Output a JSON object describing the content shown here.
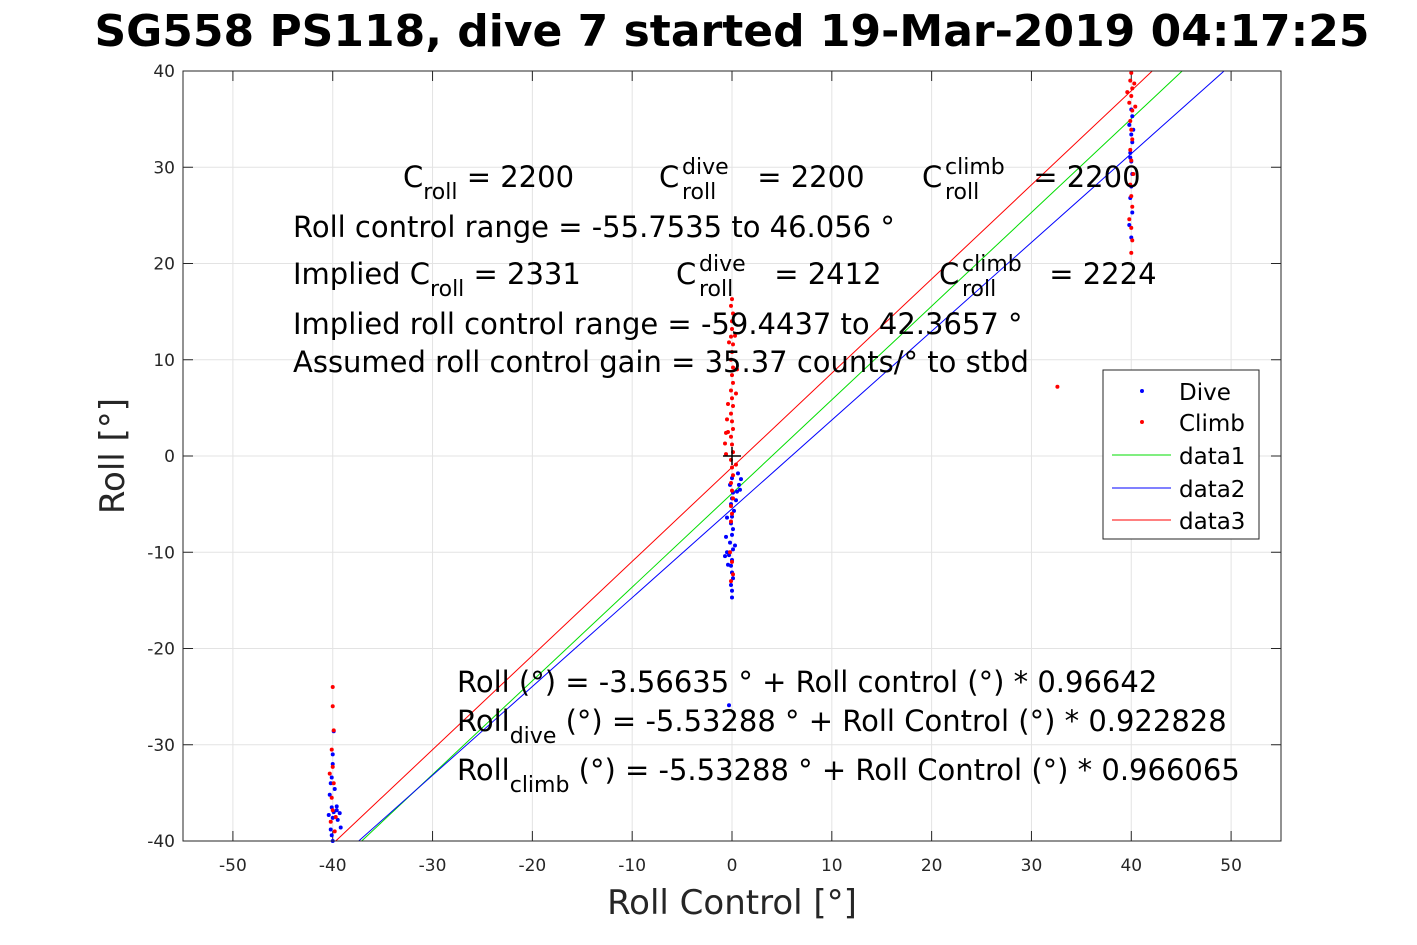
{
  "chart_data": {
    "type": "scatter",
    "title": "SG558 PS118, dive 7 started 19-Mar-2019 04:17:25",
    "xlabel": "Roll Control [°]",
    "ylabel": "Roll [°]",
    "xlim": [
      -55,
      55
    ],
    "ylim": [
      -40,
      40
    ],
    "xticks": [
      -50,
      -40,
      -30,
      -20,
      -10,
      0,
      10,
      20,
      30,
      40,
      50
    ],
    "yticks": [
      -40,
      -30,
      -20,
      -10,
      0,
      10,
      20,
      30,
      40
    ],
    "grid": true,
    "legend_position": "right",
    "colors": {
      "dive": "#0000ff",
      "climb": "#ff0000",
      "data1": "#00dd00",
      "data2": "#0000ff",
      "data3": "#ff0000"
    },
    "series": [
      {
        "name": "Dive",
        "marker": "dot",
        "points": [
          [
            -40,
            -40
          ],
          [
            -40.1,
            -39.4
          ],
          [
            -40.2,
            -38.8
          ],
          [
            -40,
            -37.6
          ],
          [
            -39.9,
            -37.0
          ],
          [
            -40.1,
            -36.5
          ],
          [
            -40.3,
            -35.2
          ],
          [
            -39.8,
            -34.6
          ],
          [
            -40.2,
            -34.0
          ],
          [
            -40.1,
            -33.4
          ],
          [
            -40,
            -32.0
          ],
          [
            -40,
            -31.0
          ],
          [
            -39.9,
            -28.6
          ],
          [
            -40.4,
            -37.3
          ],
          [
            -39.6,
            -36.4
          ],
          [
            -39.2,
            -38.6
          ],
          [
            -39.5,
            -37.8
          ],
          [
            -39.6,
            -36.8
          ],
          [
            -39.3,
            -37.1
          ],
          [
            0,
            -14.7
          ],
          [
            0,
            -14.0
          ],
          [
            -0.1,
            -13.4
          ],
          [
            0.1,
            -12.7
          ],
          [
            0,
            -12.1
          ],
          [
            -0.1,
            -11.4
          ],
          [
            0,
            -10.8
          ],
          [
            -0.3,
            -10.3
          ],
          [
            -0.7,
            -10.4
          ],
          [
            -0.5,
            -10.0
          ],
          [
            0.1,
            -9.7
          ],
          [
            -0.2,
            -9.0
          ],
          [
            0,
            -8.2
          ],
          [
            0.1,
            -7.6
          ],
          [
            -0.1,
            -7.0
          ],
          [
            0,
            -6.3
          ],
          [
            0.2,
            -5.7
          ],
          [
            -0.1,
            -5.0
          ],
          [
            0,
            -4.4
          ],
          [
            0.1,
            -3.8
          ],
          [
            -0.2,
            -3.0
          ],
          [
            0,
            -2.3
          ],
          [
            0.4,
            -4.6
          ],
          [
            0.5,
            -3.7
          ],
          [
            0.7,
            -3.0
          ],
          [
            0.9,
            -2.4
          ],
          [
            0.6,
            -1.8
          ],
          [
            0.8,
            -3.5
          ],
          [
            -0.5,
            -6.4
          ],
          [
            -0.6,
            -8.4
          ],
          [
            0.3,
            -9.3
          ],
          [
            -0.4,
            -11.3
          ],
          [
            -0.3,
            -25.9
          ],
          [
            40,
            22.7
          ],
          [
            39.8,
            24.0
          ],
          [
            40.1,
            25.3
          ],
          [
            39.9,
            26.8
          ],
          [
            40,
            28.0
          ],
          [
            40.1,
            29.3
          ],
          [
            40,
            30.6
          ],
          [
            39.9,
            31.5
          ],
          [
            40.1,
            32.6
          ],
          [
            40,
            33.4
          ],
          [
            39.8,
            34.4
          ],
          [
            40.1,
            35.3
          ],
          [
            39.9,
            31.0
          ],
          [
            40.2,
            33.9
          ],
          [
            40,
            36.0
          ]
        ]
      },
      {
        "name": "Climb",
        "marker": "dot",
        "points": [
          [
            -40,
            -24.0
          ],
          [
            -40,
            -26.0
          ],
          [
            -39.9,
            -28.5
          ],
          [
            -40.1,
            -30.5
          ],
          [
            -40,
            -32.3
          ],
          [
            -39.9,
            -34.0
          ],
          [
            -40.1,
            -35.5
          ],
          [
            -40,
            -36.8
          ],
          [
            -40.2,
            -38.0
          ],
          [
            -39.8,
            -39.0
          ],
          [
            -39.7,
            -37.5
          ],
          [
            -40.3,
            -33.0
          ],
          [
            0,
            16.3
          ],
          [
            -0.1,
            15.6
          ],
          [
            0.1,
            14.8
          ],
          [
            0,
            14.0
          ],
          [
            0,
            13.2
          ],
          [
            -0.1,
            12.4
          ],
          [
            0.1,
            11.6
          ],
          [
            0,
            10.8
          ],
          [
            -0.1,
            10.0
          ],
          [
            0.1,
            9.2
          ],
          [
            0,
            8.4
          ],
          [
            0.1,
            7.6
          ],
          [
            -0.1,
            6.8
          ],
          [
            0,
            6.0
          ],
          [
            0.1,
            5.2
          ],
          [
            -0.1,
            4.4
          ],
          [
            0,
            3.6
          ],
          [
            0.1,
            2.8
          ],
          [
            -0.1,
            2.0
          ],
          [
            0,
            1.2
          ],
          [
            0.1,
            0.4
          ],
          [
            -0.1,
            -0.4
          ],
          [
            0,
            -1.2
          ],
          [
            0.1,
            -2.0
          ],
          [
            -0.1,
            -2.8
          ],
          [
            0,
            -3.6
          ],
          [
            0.1,
            -4.4
          ],
          [
            -0.1,
            -5.2
          ],
          [
            0,
            -6.0
          ],
          [
            -0.1,
            -6.8
          ],
          [
            -0.2,
            -10.0
          ],
          [
            0,
            -11.0
          ],
          [
            0.1,
            -12.3
          ],
          [
            -0.1,
            -13.0
          ],
          [
            -0.6,
            2.4
          ],
          [
            -0.7,
            1.3
          ],
          [
            -0.5,
            3.8
          ],
          [
            -0.6,
            0.2
          ],
          [
            0.4,
            6.5
          ],
          [
            0.5,
            9.0
          ],
          [
            -0.3,
            11.8
          ],
          [
            0.3,
            12.5
          ],
          [
            -0.4,
            5.4
          ],
          [
            0.4,
            -0.9
          ],
          [
            -0.4,
            2.5
          ],
          [
            32.6,
            7.2
          ],
          [
            40,
            39.8
          ],
          [
            39.9,
            39.0
          ],
          [
            40.1,
            38.2
          ],
          [
            40,
            37.4
          ],
          [
            39.8,
            36.7
          ],
          [
            40.1,
            35.9
          ],
          [
            39.9,
            34.8
          ],
          [
            40,
            33.9
          ],
          [
            40.1,
            32.9
          ],
          [
            39.9,
            31.8
          ],
          [
            40,
            30.7
          ],
          [
            40.2,
            29.3
          ],
          [
            39.9,
            28.2
          ],
          [
            40,
            27.0
          ],
          [
            40.1,
            25.9
          ],
          [
            39.8,
            24.6
          ],
          [
            40,
            23.7
          ],
          [
            40.1,
            22.4
          ],
          [
            40,
            21.1
          ],
          [
            40.3,
            38.7
          ],
          [
            39.6,
            37.8
          ],
          [
            40.4,
            36.3
          ]
        ]
      },
      {
        "name": "data1",
        "style": "line",
        "x": [
          -37.1,
          45.1
        ],
        "y": [
          -40,
          40
        ]
      },
      {
        "name": "data2",
        "style": "line",
        "x": [
          -37.4,
          49.3
        ],
        "y": [
          -40,
          40
        ]
      },
      {
        "name": "data3",
        "style": "line",
        "x": [
          -39.7,
          42.1
        ],
        "y": [
          -40,
          40
        ]
      }
    ],
    "origin_marker": [
      0,
      0
    ],
    "annotations": {
      "line1": {
        "c": "C",
        "c_sub": "roll",
        "v1": " = 2200",
        "c2": "C",
        "c2_sup": "dive",
        "c2_sub": "roll",
        "v2": " = 2200",
        "c3": "C",
        "c3_sup": "climb",
        "c3_sub": "roll",
        "v3": " = 2200"
      },
      "line2": "Roll control range = -55.7535 to 46.056 °",
      "line3": {
        "pre": "Implied C",
        "pre_sub": "roll",
        "v1": " = 2331",
        "c2": "C",
        "c2_sup": "dive",
        "c2_sub": "roll",
        "v2": " = 2412",
        "c3": "C",
        "c3_sup": "climb",
        "c3_sub": "roll",
        "v3": " = 2224"
      },
      "line4": "Implied roll control range = -59.4437 to 42.3657 °",
      "line5": "Assumed roll control gain = 35.37 counts/° to stbd",
      "fit1": "Roll (°) = -3.56635 ° + Roll control (°) * 0.96642",
      "fit2": {
        "pre": "Roll",
        "sub": "dive",
        "post": " (°) = -5.53288 ° + Roll Control (°) * 0.922828"
      },
      "fit3": {
        "pre": "Roll",
        "sub": "climb",
        "post": " (°) = -5.53288 ° + Roll Control (°) * 0.966065"
      }
    }
  }
}
